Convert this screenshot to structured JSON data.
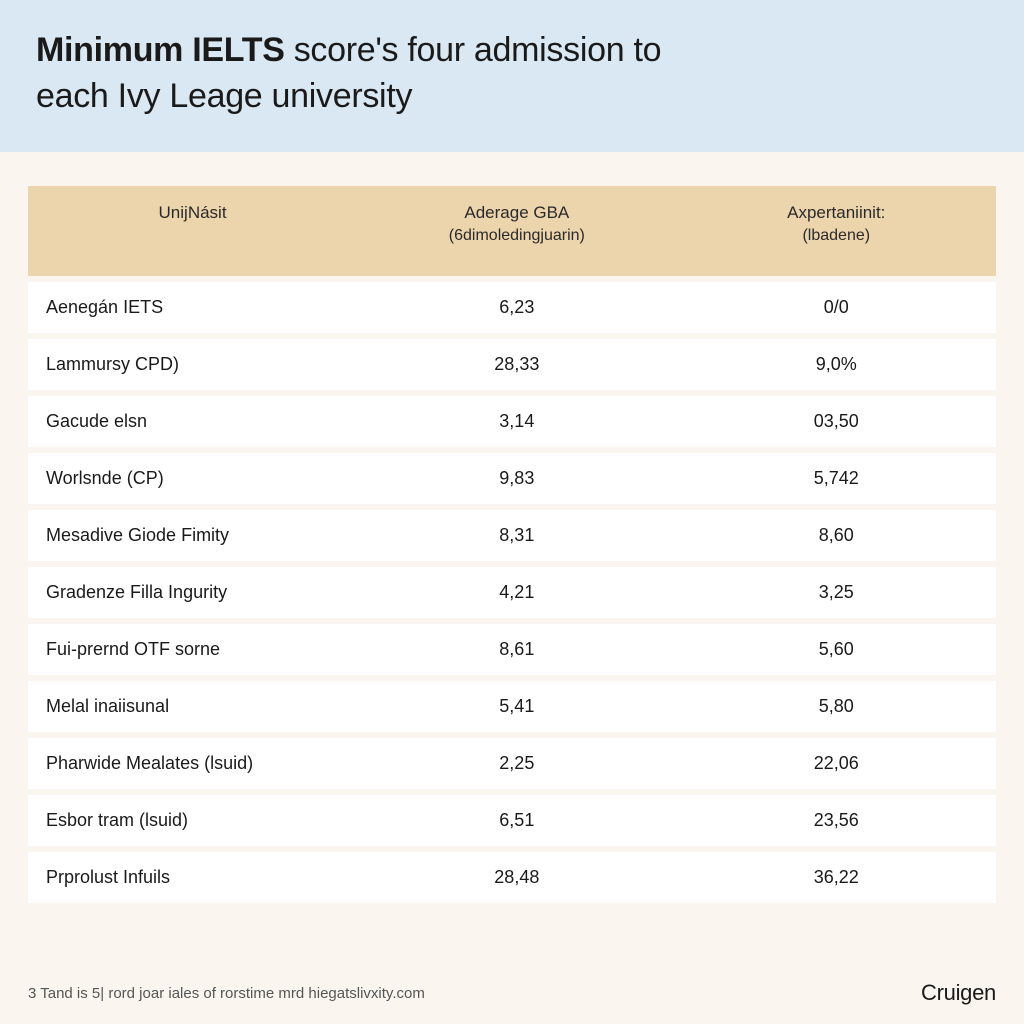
{
  "title": {
    "line1_bold": "Minimum IELTS",
    "line1_rest": " score's four admission to",
    "line2": "each Ivy Leage university"
  },
  "columns": [
    {
      "main": "UnijNásit",
      "sub": ""
    },
    {
      "main": "Aderage GBA",
      "sub": "(6dimoledingjuarin)"
    },
    {
      "main": "Axpertaniinit:",
      "sub": "(lbadene)"
    }
  ],
  "rows": [
    {
      "name": "Aenegán IETS",
      "col2": "6,23",
      "col3": "0/0"
    },
    {
      "name": "Lammursy CPD)",
      "col2": "28,33",
      "col3": "9,0%"
    },
    {
      "name": "Gacude elsn",
      "col2": "3,14",
      "col3": "03,50"
    },
    {
      "name": "Worlsnde (CP)",
      "col2": "9,83",
      "col3": "5,742"
    },
    {
      "name": "Mesadive Giode Fimity",
      "col2": "8,31",
      "col3": "8,60"
    },
    {
      "name": "Gradenze Filla Ingurity",
      "col2": "4,21",
      "col3": "3,25"
    },
    {
      "name": "Fui-prernd OTF sorne",
      "col2": "8,61",
      "col3": "5,60"
    },
    {
      "name": "Melal inaiisunal",
      "col2": "5,41",
      "col3": "5,80"
    },
    {
      "name": "Pharwide Mealates (lsuid)",
      "col2": "2,25",
      "col3": "22,06"
    },
    {
      "name": "Esbor tram (lsuid)",
      "col2": "6,51",
      "col3": "23,56"
    },
    {
      "name": "Prprolust Infuils",
      "col2": "28,48",
      "col3": "36,22"
    }
  ],
  "footnote": "3 Tand is 5| rord joar iales of rorstime mrd hiegatslivxity.com",
  "brand": "Cruigen",
  "style": {
    "background_color": "#faf6ef",
    "header_bg": "#d9e8f3",
    "th_bg": "#ecd4ac",
    "row_bg": "#ffffff",
    "title_color": "#1a1a1a",
    "text_color": "#1a1a1a",
    "footnote_color": "#555",
    "title_fontsize": 34,
    "th_fontsize": 17,
    "td_fontsize": 18,
    "footnote_fontsize": 15,
    "brand_fontsize": 22
  }
}
